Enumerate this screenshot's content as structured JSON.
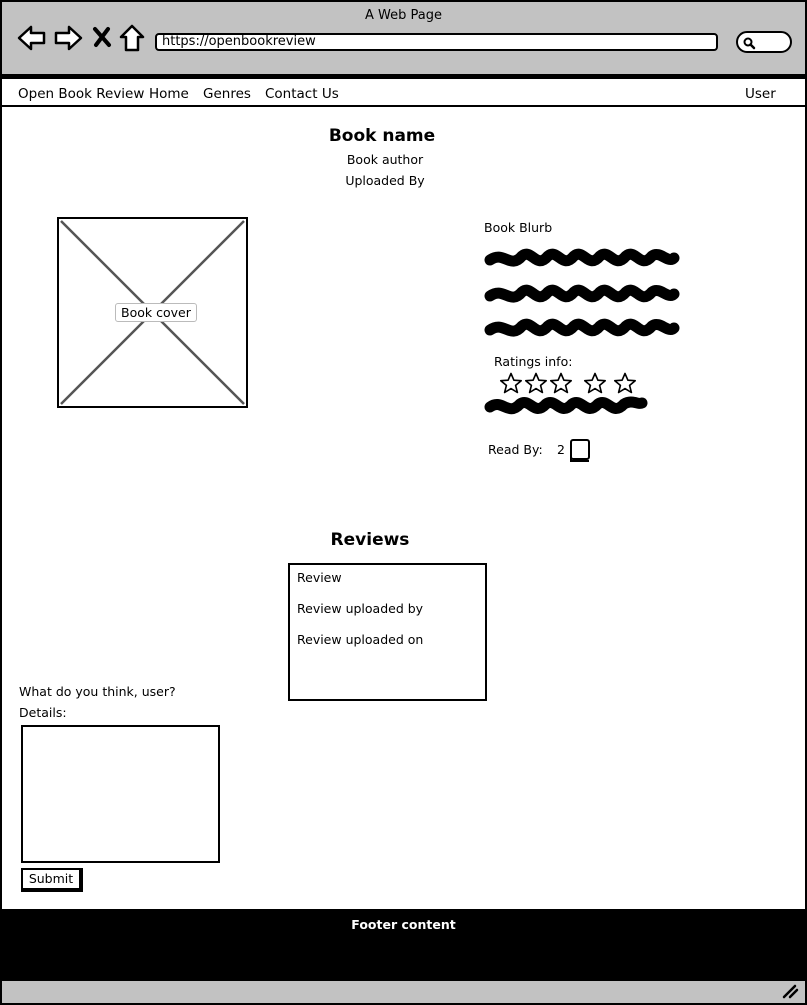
{
  "window": {
    "title": "A Web Page",
    "url": "https://openbookreview"
  },
  "nav": {
    "brand": "Open Book Review",
    "home": "Home",
    "genres": "Genres",
    "contact": "Contact Us",
    "user": "User"
  },
  "book": {
    "name": "Book name",
    "author": "Book author",
    "uploaded_by": "Uploaded By",
    "cover_label": "Book cover",
    "blurb_label": "Book Blurb",
    "ratings_label": "Ratings info:",
    "rating_stars_total": 5,
    "rating_stars_filled": 0,
    "read_by_label": "Read By:",
    "read_by_count": "2"
  },
  "reviews": {
    "title": "Reviews",
    "items": [
      {
        "review": "Review",
        "uploaded_by": "Review uploaded by",
        "uploaded_on": "Review uploaded on"
      }
    ]
  },
  "form": {
    "question": "What do you think, user?",
    "details_label": "Details:",
    "submit_label": "Submit"
  },
  "footer": {
    "text": "Footer content"
  },
  "icons": [
    "back-arrow-icon",
    "forward-arrow-icon",
    "close-icon",
    "home-icon",
    "search-icon",
    "star-icon",
    "book-icon",
    "resize-grip-icon"
  ]
}
